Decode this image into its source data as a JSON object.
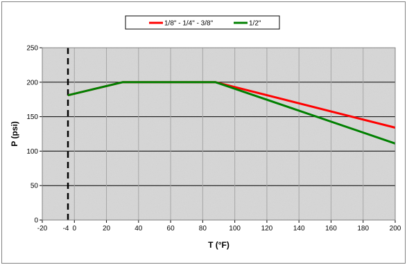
{
  "chart_data": {
    "type": "line",
    "title": "",
    "xlabel": "T (°F)",
    "ylabel": "P (psi)",
    "xlim": [
      -20,
      200
    ],
    "ylim": [
      0,
      250
    ],
    "x_ticks": [
      -20,
      0,
      20,
      40,
      60,
      80,
      100,
      120,
      140,
      160,
      180,
      200
    ],
    "y_ticks": [
      0,
      50,
      100,
      150,
      200,
      250
    ],
    "grid": true,
    "legend_position": "top-center",
    "background_colors": {
      "plot_area": "#d8d8d8",
      "chart_area": "#ffffff"
    },
    "series": [
      {
        "name": "1/8\" - 1/4\" - 3/8\"",
        "color": "#ff0000",
        "points": [
          [
            -4,
            181
          ],
          [
            30,
            200
          ],
          [
            88,
            200
          ],
          [
            200,
            134
          ]
        ]
      },
      {
        "name": "1/2\"",
        "color": "#008000",
        "points": [
          [
            -4,
            181
          ],
          [
            30,
            200
          ],
          [
            88,
            200
          ],
          [
            200,
            111
          ]
        ]
      }
    ],
    "reference_line": {
      "x": -4,
      "label": "-4",
      "color": "#000000",
      "style": "dashed"
    }
  }
}
